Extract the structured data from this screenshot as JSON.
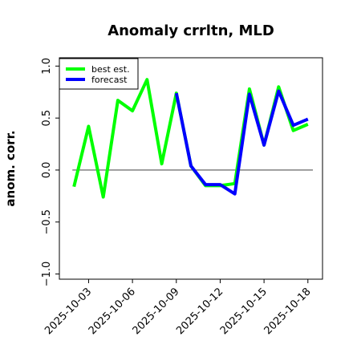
{
  "chart_data": {
    "type": "line",
    "title": "Anomaly crrltn, MLD",
    "xlabel": "",
    "ylabel": "anom. corr.",
    "ylim": [
      -1.05,
      1.08
    ],
    "yticks": [
      -1.0,
      -0.5,
      0.0,
      0.5,
      1.0
    ],
    "ytick_labels": [
      "−1.0",
      "−0.5",
      "0.0",
      "0.5",
      "1.0"
    ],
    "xticks": [
      "2025-10-03",
      "2025-10-06",
      "2025-10-09",
      "2025-10-12",
      "2025-10-15",
      "2025-10-18"
    ],
    "highlight_tick": "2025-10-09",
    "highlight_color": "#228b22",
    "x": [
      "2025-10-02",
      "2025-10-03",
      "2025-10-04",
      "2025-10-05",
      "2025-10-06",
      "2025-10-07",
      "2025-10-08",
      "2025-10-09",
      "2025-10-10",
      "2025-10-11",
      "2025-10-12",
      "2025-10-13",
      "2025-10-14",
      "2025-10-15",
      "2025-10-16",
      "2025-10-17",
      "2025-10-18"
    ],
    "xlim": [
      "2025-10-01",
      "2025-10-19"
    ],
    "reference_line": 0.0,
    "legend_position": "top-left",
    "grid": false,
    "series": [
      {
        "name": "best est.",
        "color": "#00ff00",
        "values": [
          -0.16,
          0.42,
          -0.26,
          0.67,
          0.57,
          0.87,
          0.06,
          0.74,
          0.04,
          -0.15,
          -0.15,
          -0.13,
          0.78,
          0.24,
          0.8,
          0.38,
          0.44
        ]
      },
      {
        "name": "forecast",
        "color": "#0000ff",
        "values": [
          null,
          null,
          null,
          null,
          null,
          null,
          null,
          0.74,
          0.04,
          -0.14,
          -0.14,
          -0.23,
          0.73,
          0.24,
          0.76,
          0.43,
          0.49
        ]
      }
    ]
  }
}
